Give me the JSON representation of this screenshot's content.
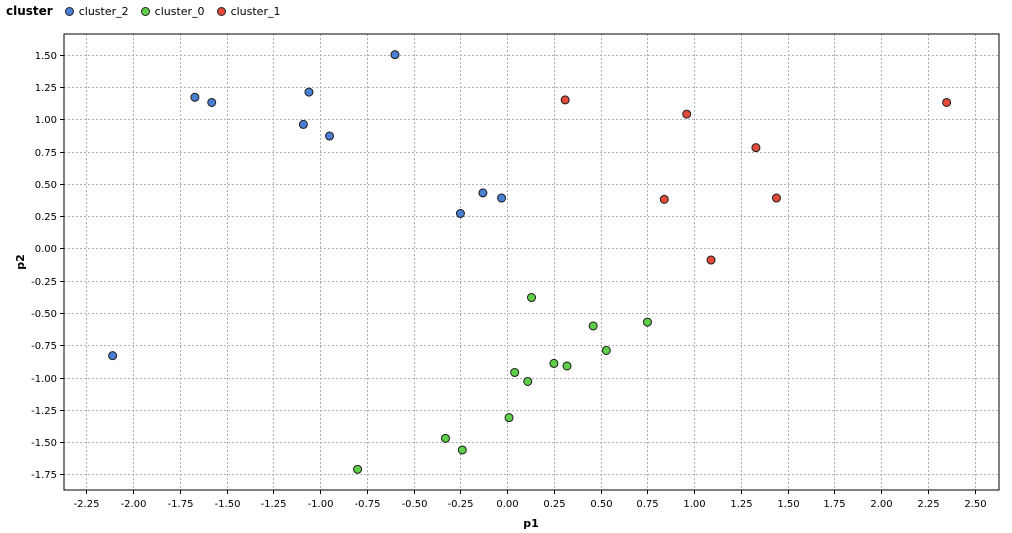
{
  "chart_data": {
    "type": "scatter",
    "title": "",
    "xlabel": "p1",
    "ylabel": "p2",
    "legend_title": "cluster",
    "legend_position": "top-left",
    "grid": true,
    "xlim": [
      -2.37,
      2.63
    ],
    "ylim": [
      -1.87,
      1.66
    ],
    "xticks": [
      -2.25,
      -2.0,
      -1.75,
      -1.5,
      -1.25,
      -1.0,
      -0.75,
      -0.5,
      -0.25,
      0.0,
      0.25,
      0.5,
      0.75,
      1.0,
      1.25,
      1.5,
      1.75,
      2.0,
      2.25,
      2.5
    ],
    "xtick_labels": [
      "-2.25",
      "-2.00",
      "-1.75",
      "-1.50",
      "-1.25",
      "-1.00",
      "-0.75",
      "-0.50",
      "-0.25",
      "0.00",
      "0.25",
      "0.50",
      "0.75",
      "1.00",
      "1.25",
      "1.50",
      "1.75",
      "2.00",
      "2.25",
      "2.50"
    ],
    "yticks": [
      1.5,
      1.25,
      1.0,
      0.75,
      0.5,
      0.25,
      0.0,
      -0.25,
      -0.5,
      -0.75,
      -1.0,
      -1.25,
      -1.5,
      -1.75
    ],
    "ytick_labels": [
      "1.50",
      "1.25",
      "1.00",
      "0.75",
      "0.50",
      "0.25",
      "0.00",
      "-0.25",
      "-0.50",
      "-0.75",
      "-1.00",
      "-1.25",
      "-1.50",
      "-1.75"
    ],
    "series": [
      {
        "name": "cluster_2",
        "color": "#4a7fd4",
        "points": [
          [
            -0.6,
            1.5
          ],
          [
            -1.67,
            1.17
          ],
          [
            -1.58,
            1.13
          ],
          [
            -1.06,
            1.21
          ],
          [
            -1.09,
            0.96
          ],
          [
            -0.95,
            0.87
          ],
          [
            -0.13,
            0.43
          ],
          [
            -0.03,
            0.39
          ],
          [
            -0.25,
            0.27
          ],
          [
            -2.11,
            -0.83
          ]
        ]
      },
      {
        "name": "cluster_0",
        "color": "#5fcf4a",
        "points": [
          [
            0.13,
            -0.38
          ],
          [
            0.46,
            -0.6
          ],
          [
            0.75,
            -0.57
          ],
          [
            0.53,
            -0.79
          ],
          [
            0.25,
            -0.89
          ],
          [
            0.32,
            -0.91
          ],
          [
            0.04,
            -0.96
          ],
          [
            0.11,
            -1.03
          ],
          [
            0.01,
            -1.31
          ],
          [
            -0.33,
            -1.47
          ],
          [
            -0.24,
            -1.56
          ],
          [
            -0.8,
            -1.71
          ]
        ]
      },
      {
        "name": "cluster_1",
        "color": "#e24b3a",
        "points": [
          [
            0.31,
            1.15
          ],
          [
            0.96,
            1.04
          ],
          [
            2.35,
            1.13
          ],
          [
            1.33,
            0.78
          ],
          [
            0.84,
            0.38
          ],
          [
            1.44,
            0.39
          ],
          [
            1.09,
            -0.09
          ]
        ]
      }
    ]
  }
}
